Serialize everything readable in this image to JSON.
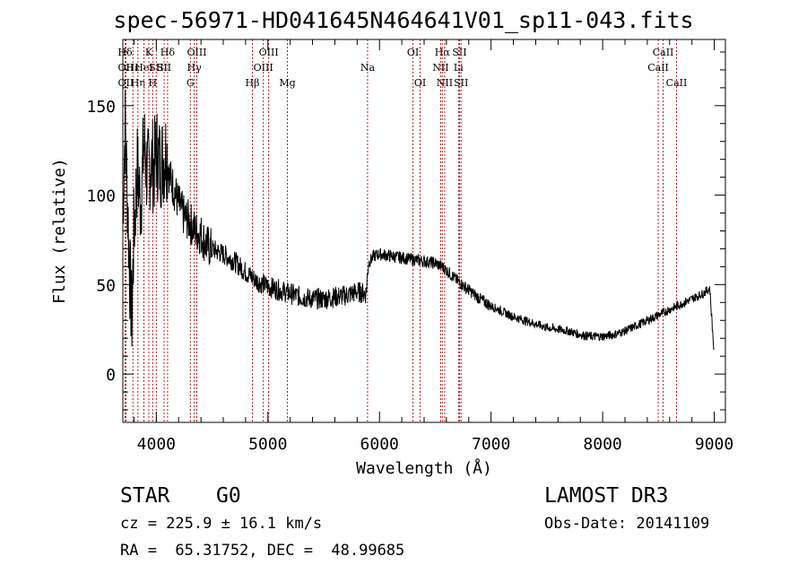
{
  "page": {
    "title": "spec-56971-HD041645N464641V01_sp11-043.fits",
    "object_class": "STAR",
    "subclass": "G0",
    "survey": "LAMOST DR3",
    "cz_label": "cz = 225.9 ± 16.1 km/s",
    "obs_date": "Obs-Date: 20141109",
    "coords": "RA =  65.31752, DEC =  48.99685"
  },
  "colors": {
    "spectrum": "#000000",
    "line_marker": "#b22222",
    "axis": "#000000"
  },
  "chart_data": {
    "type": "line",
    "title": "spec-56971-HD041645N464641V01_sp11-043.fits",
    "xlabel": "Wavelength (Å)",
    "ylabel": "Flux (relative)",
    "xlim": [
      3700,
      9100
    ],
    "ylim": [
      -27,
      187
    ],
    "x_ticks": [
      4000,
      5000,
      6000,
      7000,
      8000,
      9000
    ],
    "y_ticks": [
      0,
      50,
      100,
      150
    ],
    "series": [
      {
        "name": "spectrum",
        "x": [
          3700,
          3720,
          3740,
          3760,
          3780,
          3800,
          3830,
          3860,
          3890,
          3920,
          3950,
          3980,
          4000,
          4030,
          4060,
          4090,
          4120,
          4150,
          4200,
          4250,
          4300,
          4350,
          4400,
          4450,
          4500,
          4600,
          4700,
          4800,
          4900,
          5000,
          5100,
          5200,
          5300,
          5400,
          5500,
          5600,
          5700,
          5800,
          5880,
          5900,
          5950,
          6000,
          6100,
          6200,
          6300,
          6400,
          6500,
          6560,
          6600,
          6700,
          6800,
          6900,
          7000,
          7100,
          7200,
          7300,
          7400,
          7500,
          7600,
          7700,
          7800,
          7900,
          8000,
          8100,
          8200,
          8300,
          8400,
          8500,
          8600,
          8700,
          8800,
          8900,
          8960,
          9000
        ],
        "y": [
          90,
          140,
          100,
          60,
          30,
          80,
          115,
          95,
          130,
          110,
          120,
          115,
          125,
          118,
          120,
          125,
          110,
          105,
          95,
          88,
          85,
          80,
          78,
          72,
          70,
          67,
          63,
          57,
          52,
          49,
          47,
          45,
          43,
          42,
          42,
          43,
          44,
          46,
          45,
          62,
          66,
          67,
          66,
          65,
          64,
          63,
          62,
          60,
          58,
          52,
          47,
          42,
          38,
          35,
          32,
          30,
          28,
          26,
          25,
          24,
          22,
          21,
          21,
          22,
          24,
          27,
          30,
          33,
          36,
          39,
          42,
          45,
          48,
          10
        ]
      }
    ],
    "line_markers": [
      {
        "label": "Hδ",
        "wavelength": 3720,
        "row": 1
      },
      {
        "label": "OII",
        "wavelength": 3727,
        "row": 2
      },
      {
        "label": "OII",
        "wavelength": 3727,
        "row": 3
      },
      {
        "label": "Hε",
        "wavelength": 3790,
        "row": 2
      },
      {
        "label": "Hη",
        "wavelength": 3835,
        "row": 3
      },
      {
        "label": "K",
        "wavelength": 3933,
        "row": 1
      },
      {
        "label": "HeI",
        "wavelength": 3889,
        "row": 2
      },
      {
        "label": "SII",
        "wavelength": 4000,
        "row": 2
      },
      {
        "label": "H",
        "wavelength": 3968,
        "row": 3
      },
      {
        "label": "Hδ",
        "wavelength": 4101,
        "row": 1
      },
      {
        "label": "SII",
        "wavelength": 4070,
        "row": 2
      },
      {
        "label": "OIII",
        "wavelength": 4363,
        "row": 1
      },
      {
        "label": "Hγ",
        "wavelength": 4340,
        "row": 2
      },
      {
        "label": "G",
        "wavelength": 4305,
        "row": 3
      },
      {
        "label": "Hβ",
        "wavelength": 4861,
        "row": 3
      },
      {
        "label": "OIII",
        "wavelength": 5007,
        "row": 1
      },
      {
        "label": "OIII",
        "wavelength": 4959,
        "row": 2
      },
      {
        "label": "Mg",
        "wavelength": 5175,
        "row": 3
      },
      {
        "label": "Na",
        "wavelength": 5893,
        "row": 2
      },
      {
        "label": "OI",
        "wavelength": 6300,
        "row": 1
      },
      {
        "label": "OI",
        "wavelength": 6364,
        "row": 3
      },
      {
        "label": "Hα",
        "wavelength": 6563,
        "row": 1
      },
      {
        "label": "NII",
        "wavelength": 6548,
        "row": 2
      },
      {
        "label": "NII",
        "wavelength": 6584,
        "row": 3
      },
      {
        "label": "SII",
        "wavelength": 6717,
        "row": 1
      },
      {
        "label": "Li",
        "wavelength": 6708,
        "row": 2
      },
      {
        "label": "SII",
        "wavelength": 6731,
        "row": 3
      },
      {
        "label": "CaII",
        "wavelength": 8542,
        "row": 1
      },
      {
        "label": "CaII",
        "wavelength": 8498,
        "row": 2
      },
      {
        "label": "CaII",
        "wavelength": 8662,
        "row": 3
      }
    ]
  }
}
